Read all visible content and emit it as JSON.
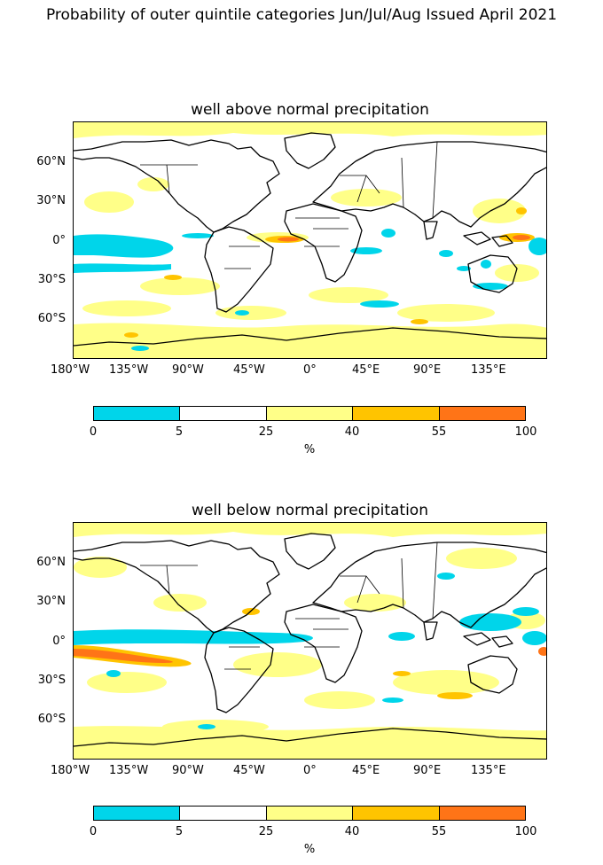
{
  "title": "Probability of outer quintile categories Jun/Jul/Aug Issued April 2021",
  "colorbar": {
    "boundaries": [
      "0",
      "5",
      "25",
      "40",
      "55",
      "100"
    ],
    "colors": [
      "#00d5ea",
      "#ffffff",
      "#ffff88",
      "#ffc400",
      "#ff7417"
    ],
    "unit": "%"
  },
  "axes": {
    "lon_labels": [
      "180°W",
      "135°W",
      "90°W",
      "45°W",
      "0°",
      "45°E",
      "90°E",
      "135°E"
    ],
    "lat_labels": [
      "60°N",
      "30°N",
      "0°",
      "30°S",
      "60°S"
    ]
  },
  "panels": [
    {
      "title": "well above normal precipitation"
    },
    {
      "title": "well below normal precipitation"
    }
  ]
}
